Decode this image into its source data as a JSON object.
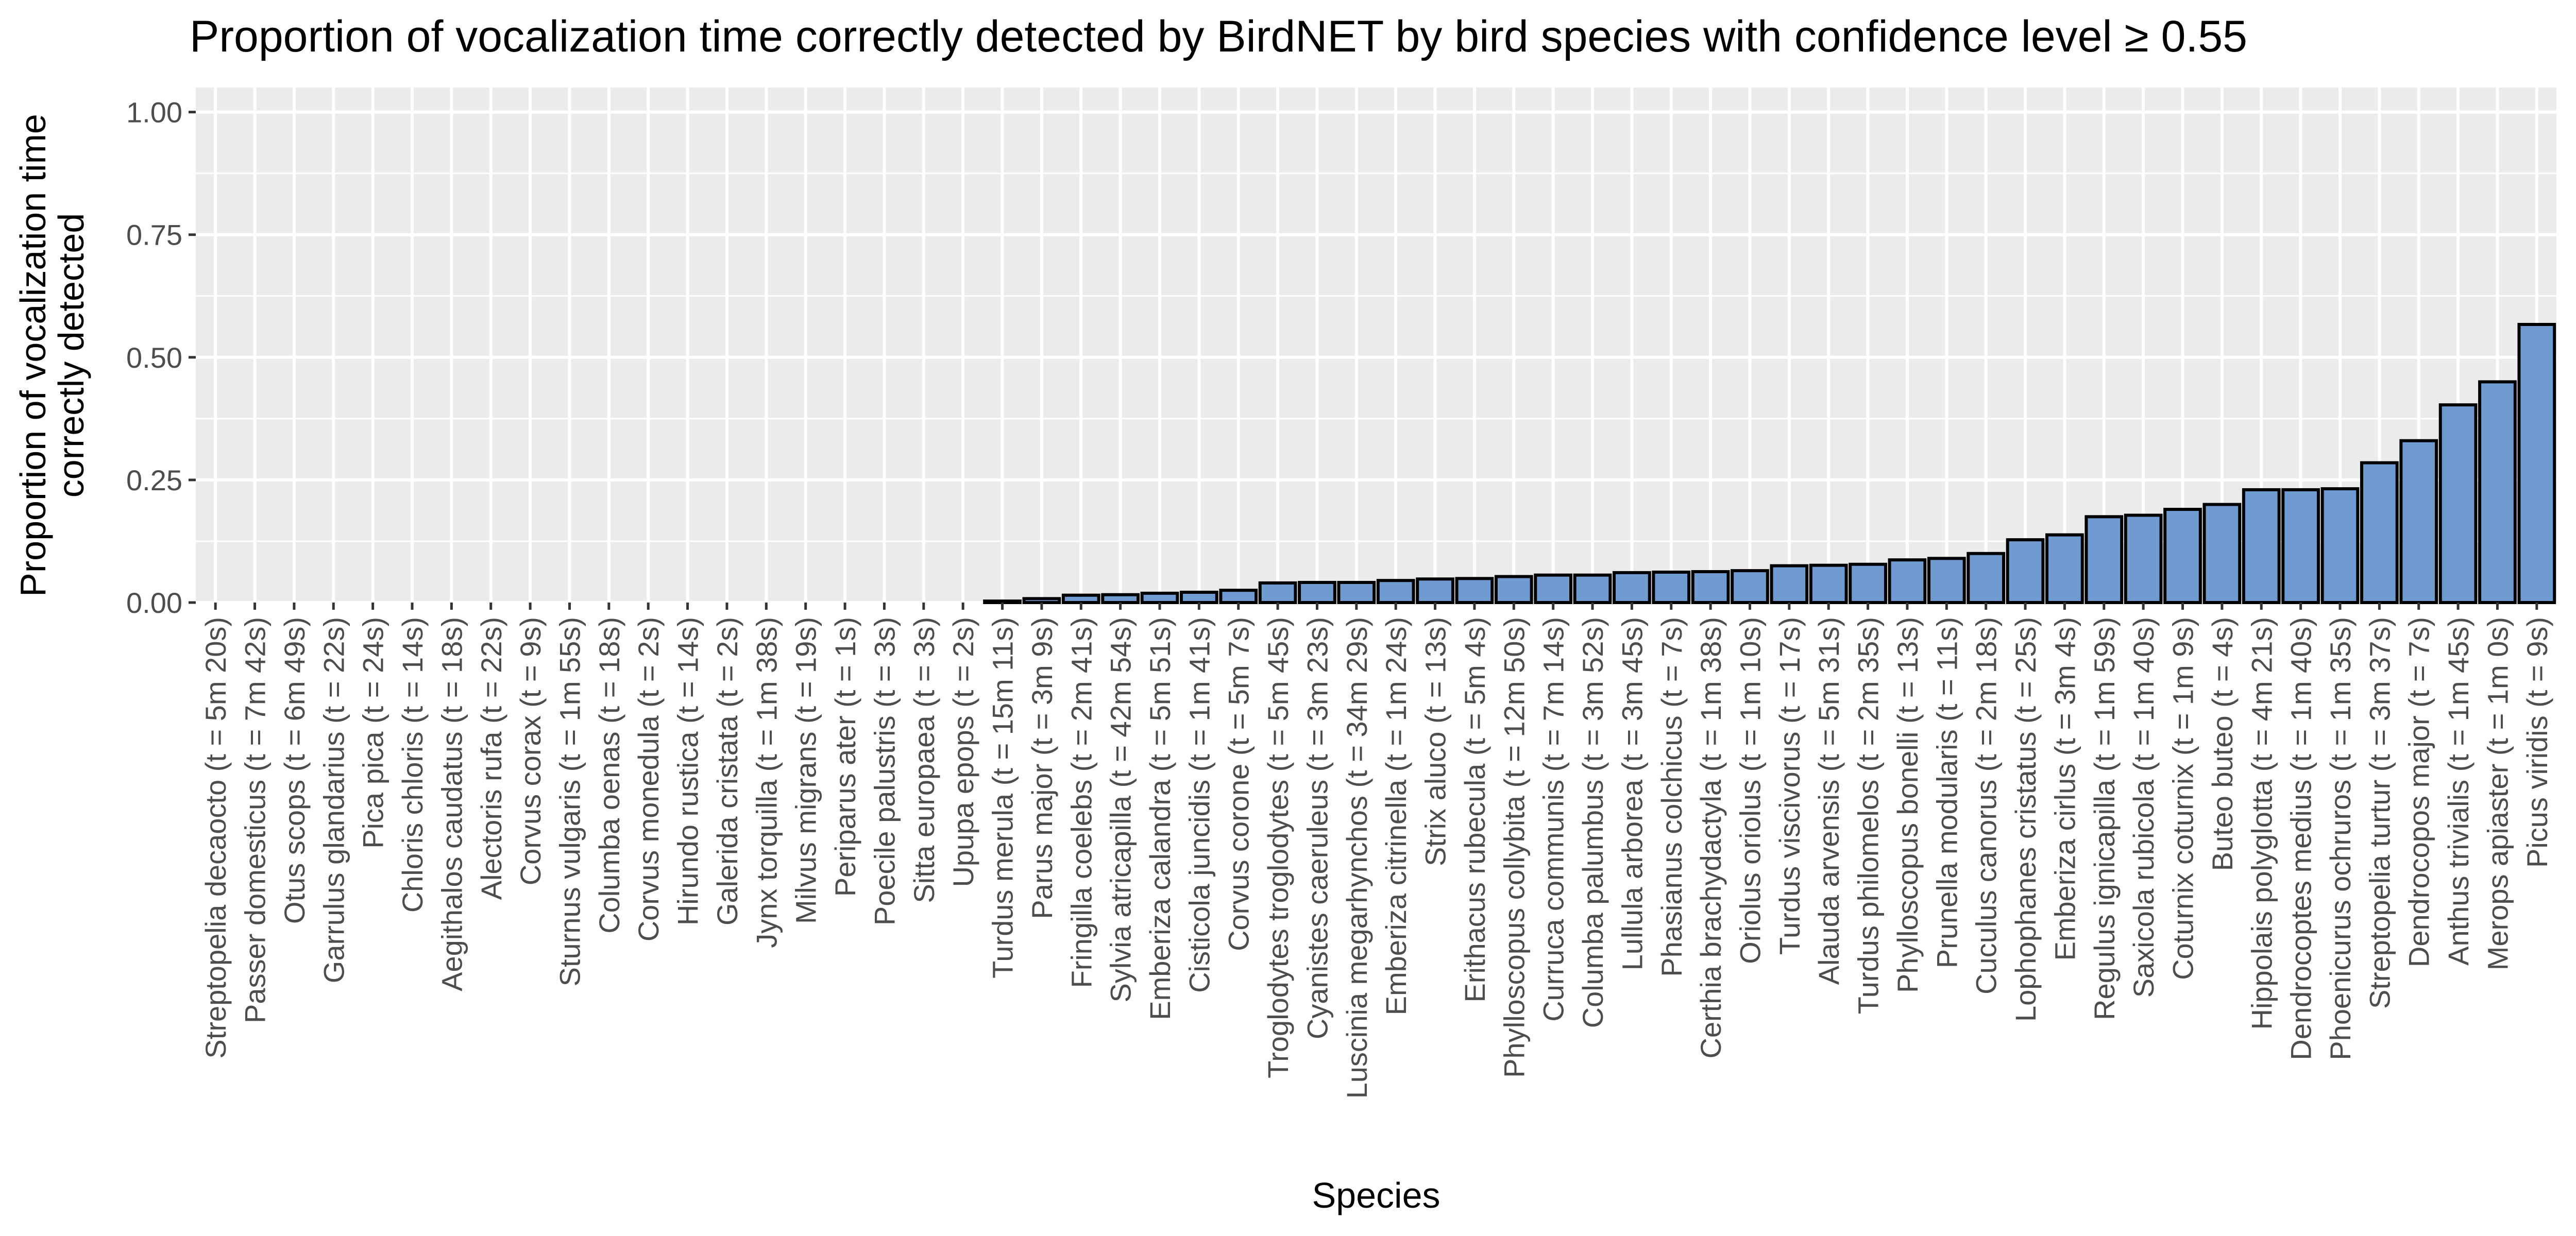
{
  "chart_data": {
    "type": "bar",
    "title": "Proportion of vocalization time correctly detected by BirdNET by bird species with confidence level ≥ 0.55",
    "xlabel": "Species",
    "ylabel_lines": [
      "Proportion of vocalization time",
      "correctly detected"
    ],
    "ylim": [
      0,
      1.05
    ],
    "yticks": [
      0,
      0.25,
      0.5,
      0.75,
      1.0
    ],
    "ytick_labels": [
      "0.00",
      "0.25",
      "0.50",
      "0.75",
      "1.00"
    ],
    "grid": true,
    "colors": {
      "bar_fill": "#6f9bd1",
      "bar_stroke": "#000000",
      "panel": "#ebebeb",
      "grid": "#ffffff"
    },
    "categories": [
      "Streptopelia decaocto (t = 5m 20s)",
      "Passer domesticus (t = 7m 42s)",
      "Otus scops (t = 6m 49s)",
      "Garrulus glandarius (t = 22s)",
      "Pica pica (t = 24s)",
      "Chloris chloris (t = 14s)",
      "Aegithalos caudatus (t = 18s)",
      "Alectoris rufa (t = 22s)",
      "Corvus corax (t = 9s)",
      "Sturnus vulgaris (t = 1m 55s)",
      "Columba oenas (t = 18s)",
      "Corvus monedula (t = 2s)",
      "Hirundo rustica (t = 14s)",
      "Galerida cristata (t = 2s)",
      "Jynx torquilla (t = 1m 38s)",
      "Milvus migrans (t = 19s)",
      "Periparus ater (t = 1s)",
      "Poecile palustris (t = 3s)",
      "Sitta europaea (t = 3s)",
      "Upupa epops (t = 2s)",
      "Turdus merula (t = 15m 11s)",
      "Parus major (t = 3m 9s)",
      "Fringilla coelebs (t = 2m 41s)",
      "Sylvia atricapilla (t = 42m 54s)",
      "Emberiza calandra (t = 5m 51s)",
      "Cisticola juncidis (t = 1m 41s)",
      "Corvus corone (t = 5m 7s)",
      "Troglodytes troglodytes (t = 5m 45s)",
      "Cyanistes caeruleus (t = 3m 23s)",
      "Luscinia megarhynchos (t = 34m 29s)",
      "Emberiza citrinella (t = 1m 24s)",
      "Strix aluco (t = 13s)",
      "Erithacus rubecula (t = 5m 4s)",
      "Phylloscopus collybita (t = 12m 50s)",
      "Curruca communis (t = 7m 14s)",
      "Columba palumbus (t = 3m 52s)",
      "Lullula arborea (t = 3m 45s)",
      "Phasianus colchicus (t = 7s)",
      "Certhia brachydactyla (t = 1m 38s)",
      "Oriolus oriolus (t = 1m 10s)",
      "Turdus viscivorus (t = 17s)",
      "Alauda arvensis (t = 5m 31s)",
      "Turdus philomelos (t = 2m 35s)",
      "Phylloscopus bonelli (t = 13s)",
      "Prunella modularis (t = 11s)",
      "Cuculus canorus (t = 2m 18s)",
      "Lophophanes cristatus (t = 25s)",
      "Emberiza cirlus (t = 3m 4s)",
      "Regulus ignicapilla (t = 1m 59s)",
      "Saxicola rubicola (t = 1m 40s)",
      "Coturnix coturnix (t = 1m 9s)",
      "Buteo buteo (t = 4s)",
      "Hippolais polyglotta (t = 4m 21s)",
      "Dendrocoptes medius (t = 1m 40s)",
      "Phoenicurus ochruros (t = 1m 35s)",
      "Streptopelia turtur (t = 3m 37s)",
      "Dendrocopos major (t = 7s)",
      "Anthus trivialis (t = 1m 45s)",
      "Merops apiaster (t = 1m 0s)",
      "Picus viridis (t = 9s)"
    ],
    "values": [
      0,
      0,
      0,
      0,
      0,
      0,
      0,
      0,
      0,
      0,
      0,
      0,
      0,
      0,
      0,
      0,
      0,
      0,
      0,
      0,
      0.003,
      0.008,
      0.015,
      0.016,
      0.019,
      0.021,
      0.025,
      0.04,
      0.041,
      0.041,
      0.045,
      0.048,
      0.049,
      0.053,
      0.056,
      0.056,
      0.061,
      0.062,
      0.063,
      0.065,
      0.075,
      0.076,
      0.078,
      0.087,
      0.09,
      0.1,
      0.128,
      0.138,
      0.175,
      0.178,
      0.19,
      0.2,
      0.23,
      0.23,
      0.232,
      0.285,
      0.33,
      0.403,
      0.45,
      0.567
    ]
  }
}
